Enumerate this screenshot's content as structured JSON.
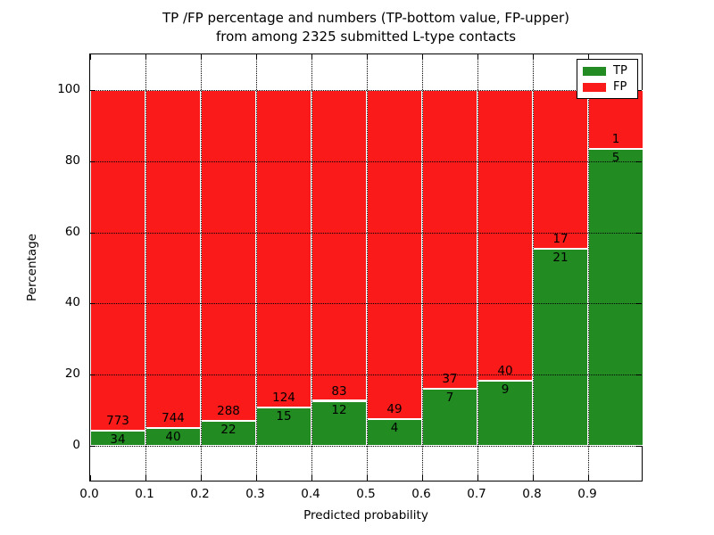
{
  "chart_data": {
    "type": "bar",
    "stacked": true,
    "title_line1": "TP /FP percentage and numbers (TP-bottom value, FP-upper)",
    "title_line2": "from among 2325 submitted L-type contacts",
    "xlabel": "Predicted probability",
    "ylabel": "Percentage",
    "total_contacts": 2325,
    "categories": [
      "0.0",
      "0.1",
      "0.2",
      "0.3",
      "0.4",
      "0.5",
      "0.6",
      "0.7",
      "0.8",
      "0.9"
    ],
    "bin_width": 0.1,
    "series": [
      {
        "name": "TP",
        "color": "#228b22",
        "counts": [
          34,
          40,
          22,
          15,
          12,
          4,
          7,
          9,
          21,
          5
        ]
      },
      {
        "name": "FP",
        "color": "#fa1a1a",
        "counts": [
          773,
          744,
          288,
          124,
          83,
          49,
          37,
          40,
          17,
          1
        ]
      }
    ],
    "tp_percent": [
      4.21,
      5.1,
      7.1,
      10.79,
      12.63,
      7.55,
      15.91,
      18.37,
      55.26,
      83.33
    ],
    "stack_top_percent": 100,
    "xticks": [
      "0.0",
      "0.1",
      "0.2",
      "0.3",
      "0.4",
      "0.5",
      "0.6",
      "0.7",
      "0.8",
      "0.9"
    ],
    "yticks": [
      0,
      20,
      40,
      60,
      80,
      100
    ],
    "xlim": [
      0.0,
      1.0
    ],
    "ylim": [
      -10.3,
      110.0
    ],
    "grid": "dotted, drawn above bars",
    "legend": {
      "position": "upper right",
      "entries": [
        {
          "label": "TP",
          "color": "#228b22"
        },
        {
          "label": "FP",
          "color": "#fa1a1a"
        }
      ]
    }
  }
}
